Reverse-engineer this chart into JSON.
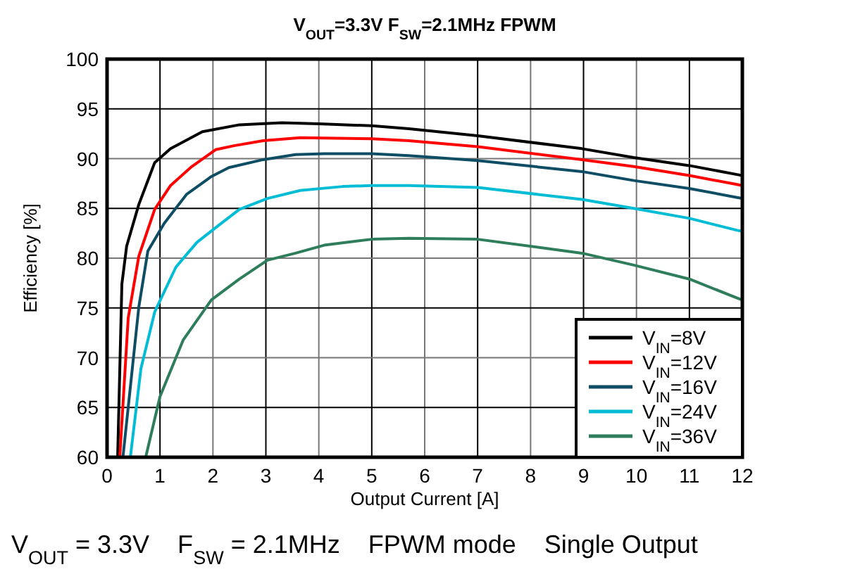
{
  "chart_data": {
    "type": "line",
    "title": "V$_{OUT}$=3.3V F$_{SW}$=2.1MHz FPWM",
    "xlabel": "Output Current [A]",
    "ylabel": "Efficiency [%]",
    "xlim": [
      0,
      12
    ],
    "ylim": [
      60,
      100
    ],
    "xticks": [
      0,
      1,
      2,
      3,
      4,
      5,
      6,
      7,
      8,
      9,
      10,
      11,
      12
    ],
    "yticks": [
      60,
      65,
      70,
      75,
      80,
      85,
      90,
      95,
      100
    ],
    "grid": true,
    "legend": "bottom right",
    "line_style": "solid",
    "marker": "none",
    "annotations": [
      "V$_{OUT}$ = 3.3V    F$_{SW}$ = 2.1MHz    FPWM mode    Single Output"
    ],
    "series": [
      {
        "name": "V$_{IN}$=8V",
        "color": "#000000",
        "x": [
          0.2,
          0.28,
          0.37,
          0.6,
          0.9,
          1.2,
          1.8,
          2.5,
          3.3,
          4,
          5,
          5.7,
          7,
          8.97,
          9.95,
          11,
          11.9,
          12
        ],
        "values": [
          60,
          77.4,
          81.2,
          85.4,
          89.6,
          91,
          92.7,
          93.4,
          93.6,
          93.5,
          93.3,
          93,
          92.3,
          91,
          90.1,
          89.3,
          88.4,
          88.3
        ]
      },
      {
        "name": "V$_{IN}$=12V",
        "color": "#ff0000",
        "x": [
          0.24,
          0.4,
          0.6,
          0.9,
          1.2,
          1.6,
          2.05,
          2.4,
          2.95,
          3.65,
          5,
          5.7,
          7,
          8.97,
          9.95,
          11,
          11.9,
          12
        ],
        "values": [
          60,
          74,
          80.2,
          84.9,
          87.3,
          89.2,
          90.9,
          91.3,
          91.8,
          92.1,
          92,
          91.8,
          91.2,
          89.9,
          89.2,
          88.3,
          87.4,
          87.3
        ]
      },
      {
        "name": "V$_{IN}$=16V",
        "color": "#0e4d64",
        "x": [
          0.3,
          0.6,
          0.77,
          1.08,
          1.5,
          1.97,
          2.3,
          2.95,
          3.56,
          4.1,
          5,
          5.7,
          7,
          8.97,
          9.95,
          11,
          11.9,
          12
        ],
        "values": [
          60,
          75.1,
          80.7,
          83.5,
          86.4,
          88.2,
          89.1,
          89.9,
          90.4,
          90.5,
          90.5,
          90.3,
          89.8,
          88.7,
          87.8,
          87,
          86.1,
          86
        ]
      },
      {
        "name": "V$_{IN}$=24V",
        "color": "#00bcd4",
        "x": [
          0.44,
          0.64,
          0.9,
          1.3,
          1.7,
          2.06,
          2.5,
          3.03,
          3.65,
          4.45,
          5,
          5.7,
          7,
          8.97,
          9.95,
          11,
          11.9,
          12
        ],
        "values": [
          60,
          68.9,
          74.6,
          79.1,
          81.6,
          83.1,
          84.9,
          86,
          86.8,
          87.2,
          87.3,
          87.3,
          87.1,
          85.9,
          85,
          84,
          82.8,
          82.7
        ]
      },
      {
        "name": "V$_{IN}$=36V",
        "color": "#2e7d5b",
        "x": [
          0.73,
          1,
          1.44,
          1.97,
          2.5,
          3.03,
          3.56,
          4.1,
          5,
          5.7,
          7,
          8.97,
          9.95,
          11,
          11.9,
          12
        ],
        "values": [
          60,
          66.1,
          71.8,
          75.8,
          77.9,
          79.8,
          80.5,
          81.3,
          81.9,
          82,
          81.9,
          80.5,
          79.3,
          77.9,
          76,
          75.8
        ]
      }
    ]
  }
}
